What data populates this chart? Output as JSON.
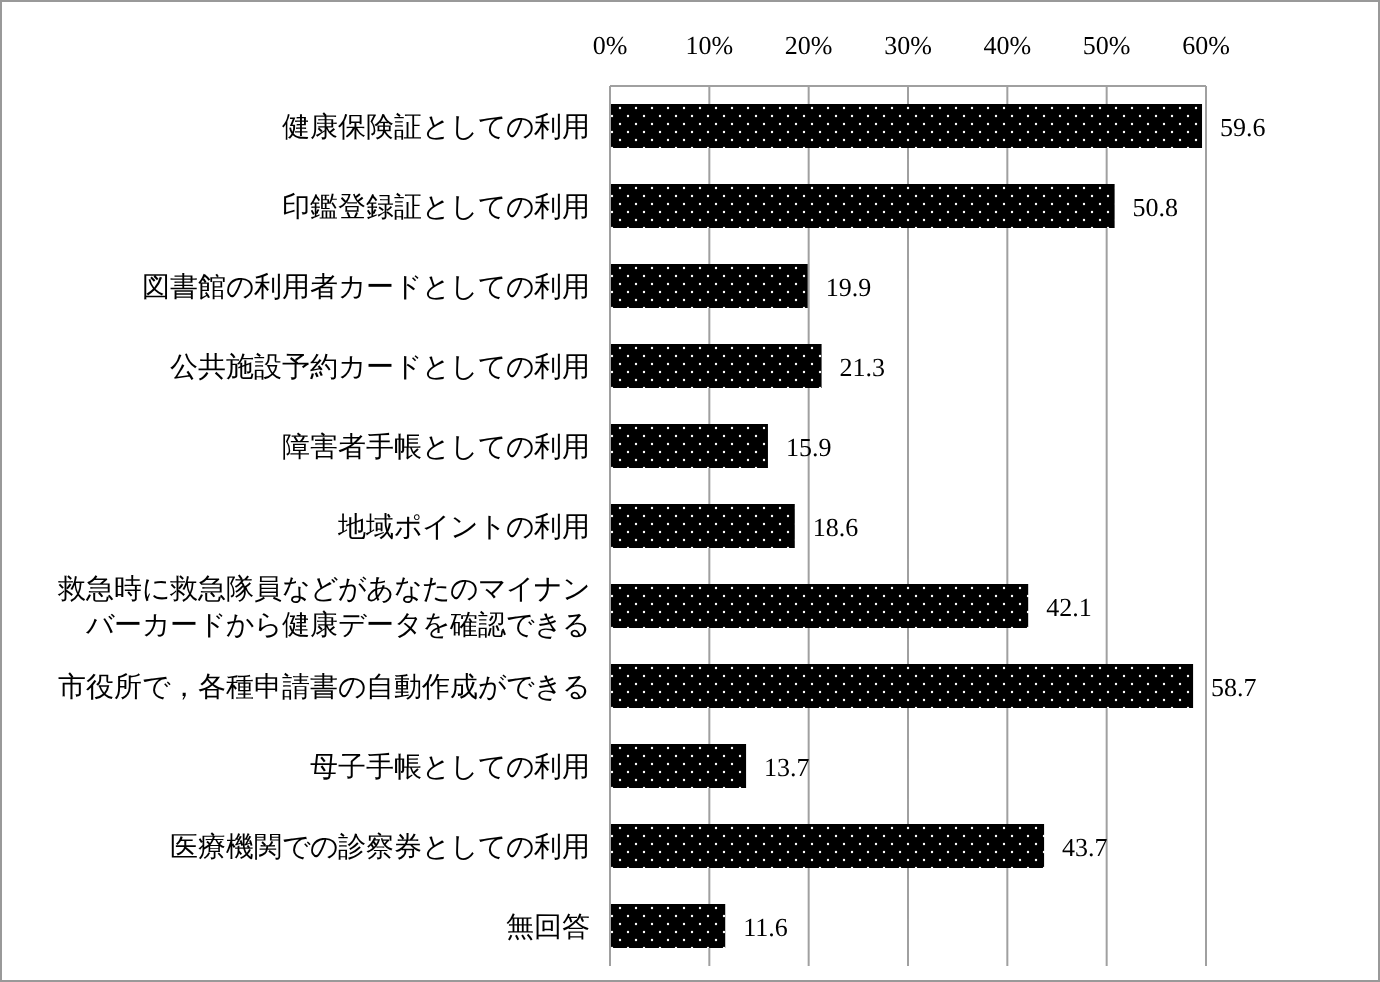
{
  "chart_data": {
    "type": "bar",
    "orientation": "horizontal",
    "categories": [
      "健康保険証としての利用",
      "印鑑登録証としての利用",
      "図書館の利用者カードとしての利用",
      "公共施設予約カードとしての利用",
      "障害者手帳としての利用",
      "地域ポイントの利用",
      "救急時に救急隊員などがあなたのマイナンバーカードから健康データを確認できる",
      "市役所で，各種申請書の自動作成ができる",
      "母子手帳としての利用",
      "医療機関での診察券としての利用",
      "無回答"
    ],
    "values": [
      59.6,
      50.8,
      19.9,
      21.3,
      15.9,
      18.6,
      42.1,
      58.7,
      13.7,
      43.7,
      11.6
    ],
    "data_labels": true,
    "color": "#000000",
    "xlim": [
      0,
      60
    ],
    "xticks": [
      {
        "value": 0,
        "label": "0%"
      },
      {
        "value": 10,
        "label": "10%"
      },
      {
        "value": 20,
        "label": "20%"
      },
      {
        "value": 30,
        "label": "30%"
      },
      {
        "value": 40,
        "label": "40%"
      },
      {
        "value": 50,
        "label": "50%"
      },
      {
        "value": 60,
        "label": "60%"
      }
    ],
    "grid": "x"
  }
}
